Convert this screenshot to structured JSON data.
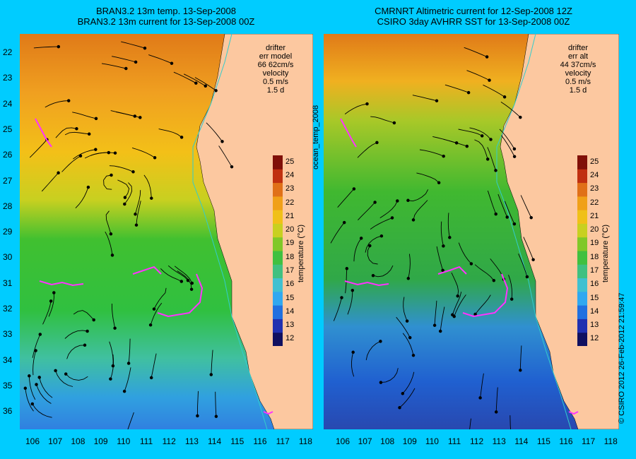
{
  "left_panel": {
    "title_line1": "BRAN3.2 13m temp. 13-Sep-2008",
    "title_line2": "BRAN3.2 13m current for 13-Sep-2008 00Z",
    "legend": {
      "drifter": "drifter",
      "err_label": "err model",
      "err_value": "66 62cm/s",
      "velocity": "velocity",
      "velocity_scale": "0.5 m/s",
      "duration": "1.5 d"
    }
  },
  "right_panel": {
    "title_line1": "CMRNRT Altimetric current for 12-Sep-2008 12Z",
    "title_line2": "CSIRO 3day AVHRR SST for 13-Sep-2008 00Z",
    "legend": {
      "drifter": "drifter",
      "err_label": "err alt",
      "err_value": "44 37cm/s",
      "velocity": "velocity",
      "velocity_scale": "0.5 m/s",
      "duration": "1.5 d"
    }
  },
  "middle_label": "ocean_temp_2008",
  "credit": "© CSIRO 2012   26-Feb-2012 21:59:47",
  "colorbar": {
    "title": "temperature (°C)",
    "ticks": [
      "12",
      "13",
      "14",
      "15",
      "16",
      "17",
      "18",
      "19",
      "20",
      "21",
      "22",
      "23",
      "24",
      "25"
    ]
  },
  "axes": {
    "lat_ticks": [
      "22",
      "23",
      "24",
      "25",
      "26",
      "27",
      "28",
      "29",
      "30",
      "31",
      "32",
      "33",
      "34",
      "35",
      "36"
    ],
    "lon_ticks": [
      "106",
      "107",
      "108",
      "109",
      "110",
      "111",
      "112",
      "113",
      "114",
      "115",
      "116",
      "117",
      "118"
    ]
  },
  "colors": {
    "background": "#00ccff",
    "land": "#fcc8a0",
    "drifter": "#ff33ff",
    "isobath": "#33cccc"
  }
}
